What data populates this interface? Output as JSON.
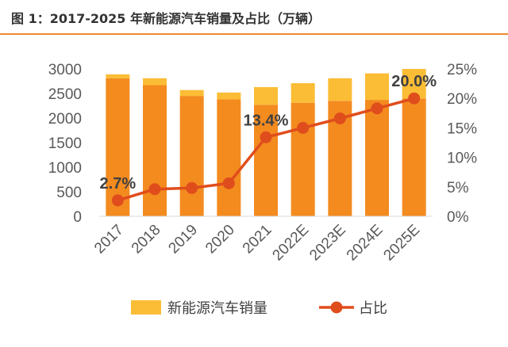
{
  "header": {
    "title": "图 1：2017-2025 年新能源汽车销量及占比（万辆）"
  },
  "colors": {
    "bar_main": "#f38b1f",
    "bar_new": "#fbbd35",
    "line": "#e04d1c",
    "rule": "#ee8a2b"
  },
  "chart_data": {
    "type": "bar",
    "categories": [
      "2017",
      "2018",
      "2019",
      "2020",
      "2021",
      "2022E",
      "2023E",
      "2024E",
      "2025E"
    ],
    "series": [
      {
        "name": "",
        "kind": "bar",
        "axis": "left",
        "values": [
          2810,
          2670,
          2450,
          2380,
          2270,
          2310,
          2350,
          2370,
          2400
        ]
      },
      {
        "name": "新能源汽车销量",
        "kind": "bar",
        "axis": "left",
        "stacked": true,
        "values": [
          80,
          140,
          120,
          140,
          360,
          400,
          460,
          540,
          600
        ]
      },
      {
        "name": "占比",
        "kind": "line",
        "axis": "right",
        "values": [
          2.7,
          4.6,
          4.8,
          5.6,
          13.4,
          15.0,
          16.6,
          18.3,
          20.0
        ]
      }
    ],
    "y_left": {
      "range": [
        0,
        3000
      ],
      "ticks": [
        "3000",
        "2500",
        "2000",
        "1500",
        "1000",
        "500",
        "0"
      ]
    },
    "y_right": {
      "range": [
        0,
        25
      ],
      "ticks": [
        "25%",
        "20%",
        "15%",
        "10%",
        "5%",
        "0%"
      ]
    },
    "annotations": [
      {
        "index": 0,
        "text": "2.7%"
      },
      {
        "index": 4,
        "text": "13.4%"
      },
      {
        "index": 8,
        "text": "20.0%"
      }
    ],
    "legend": {
      "position": "bottom",
      "bar_label": "新能源汽车销量",
      "line_label": "占比"
    },
    "grid": false
  }
}
